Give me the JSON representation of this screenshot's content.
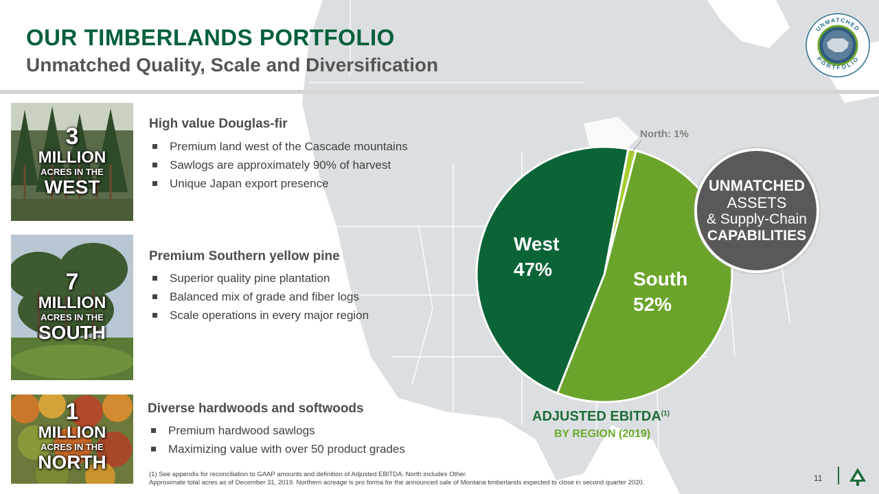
{
  "header": {
    "title": "OUR TIMBERLANDS PORTFOLIO",
    "subtitle": "Unmatched Quality, Scale and Diversification"
  },
  "seal": {
    "top_text": "UNMATCHED",
    "bottom_text": "PORTFOLIO"
  },
  "regions": [
    {
      "number": "3",
      "unit": "MILLION",
      "acres_label": "ACRES IN THE",
      "region": "WEST",
      "heading": "High value Douglas-fir",
      "bullets": [
        "Premium land west of the Cascade mountains",
        "Sawlogs are approximately 90% of harvest",
        "Unique Japan export presence"
      ]
    },
    {
      "number": "7",
      "unit": "MILLION",
      "acres_label": "ACRES IN THE",
      "region": "SOUTH",
      "heading": "Premium Southern yellow pine",
      "bullets": [
        "Superior quality pine plantation",
        "Balanced mix of grade and fiber logs",
        "Scale operations in every major region"
      ]
    },
    {
      "number": "1",
      "unit": "MILLION",
      "acres_label": "ACRES IN THE",
      "region": "NORTH",
      "heading": "Diverse hardwoods and softwoods",
      "bullets": [
        "Premium hardwood sawlogs",
        "Maximizing value with over 50 product grades"
      ]
    }
  ],
  "chart_data": {
    "type": "pie",
    "title": "ADJUSTED EBITDA",
    "title_superscript": "(1)",
    "subtitle": "BY REGION (2019)",
    "slices": [
      {
        "name": "West",
        "label": "47%",
        "value": 47,
        "color": "#0a6436"
      },
      {
        "name": "North",
        "label": "North: 1%",
        "value": 1,
        "color": "#a3cc2c"
      },
      {
        "name": "South",
        "label": "52%",
        "value": 52,
        "color": "#6aa42a"
      }
    ]
  },
  "callout": {
    "line1": "UNMATCHED",
    "line2": "ASSETS",
    "line3": "& Supply-Chain",
    "line4": "CAPABILITIES"
  },
  "footnotes": {
    "note1": "(1)     See appendix for reconciliation to GAAP amounts and definition of Adjusted EBITDA. North includes Other.",
    "note2": "Approximate total acres as of December 31, 2019. Northern acreage is pro forma for the announced sale of Montana timberlands expected to close in second quarter 2020."
  },
  "page_number": "11",
  "colors": {
    "brand_green": "#00603a",
    "light_green": "#6aaa2a",
    "callout_gray": "#595959"
  }
}
